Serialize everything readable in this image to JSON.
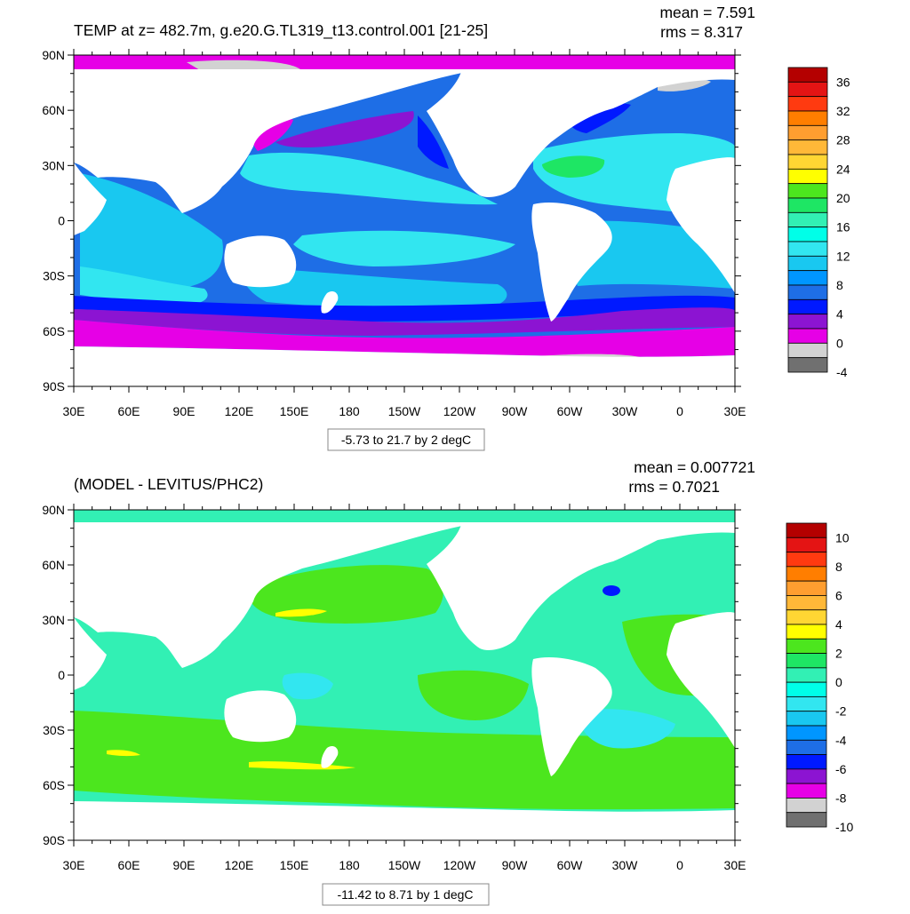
{
  "panels": [
    {
      "title": "TEMP at z= 482.7m, g.e20.G.TL319_t13.control.001 [21-25]",
      "mean_label": "mean = 7.591",
      "rms_label": "rms = 8.317",
      "contour_info": "-5.73 to 21.7 by 2 degC",
      "colorbar_labels": [
        "36",
        "32",
        "28",
        "24",
        "20",
        "16",
        "12",
        "8",
        "4",
        "0",
        "-4"
      ],
      "colorbar_colors": [
        "#b40000",
        "#e41414",
        "#ff3a10",
        "#ff7e00",
        "#ff9e30",
        "#ffb838",
        "#ffd633",
        "#ffff00",
        "#4ce61e",
        "#1ee664",
        "#32f0b4",
        "#00ffe8",
        "#32e6f0",
        "#19c8f0",
        "#0096ff",
        "#1e6ee6",
        "#0019ff",
        "#8c14d2",
        "#e600e6",
        "#d2d2d2",
        "#707070"
      ]
    },
    {
      "title": "(MODEL - LEVITUS/PHC2)",
      "mean_label": "mean = 0.007721",
      "rms_label": "rms = 0.7021",
      "contour_info": "-11.42 to 8.71 by 1 degC",
      "colorbar_labels": [
        "10",
        "8",
        "6",
        "4",
        "2",
        "0",
        "-2",
        "-4",
        "-6",
        "-8",
        "-10"
      ],
      "colorbar_colors": [
        "#b40000",
        "#e41414",
        "#ff3a10",
        "#ff7e00",
        "#ff9e30",
        "#ffb838",
        "#ffd633",
        "#ffff00",
        "#4ce61e",
        "#1ee664",
        "#32f0b4",
        "#00ffe8",
        "#32e6f0",
        "#19c8f0",
        "#0096ff",
        "#1e6ee6",
        "#0019ff",
        "#8c14d2",
        "#e600e6",
        "#d2d2d2",
        "#707070"
      ]
    }
  ],
  "lat_labels": [
    "90N",
    "60N",
    "30N",
    "0",
    "30S",
    "60S",
    "90S"
  ],
  "lon_labels": [
    "30E",
    "60E",
    "90E",
    "120E",
    "150E",
    "180",
    "150W",
    "120W",
    "90W",
    "60W",
    "30W",
    "0",
    "30E"
  ],
  "map_colors": {
    "top": {
      "arctic": "#e600e6",
      "ice": "#d2d2d2",
      "sea_warm": "#32e6f0",
      "sea_mid": "#19c8f0",
      "sea_cool": "#1e6ee6",
      "sea_cold": "#0019ff",
      "southern_purple": "#8c14d2",
      "southern_magenta": "#e600e6",
      "subtropical": "#1ee664",
      "land": "#ffffff"
    },
    "bottom": {
      "background": "#32f0b4",
      "positive": "#4ce61e",
      "negative": "#32e6f0",
      "hot": "#ffff00",
      "cold": "#0019ff",
      "land": "#ffffff"
    }
  }
}
